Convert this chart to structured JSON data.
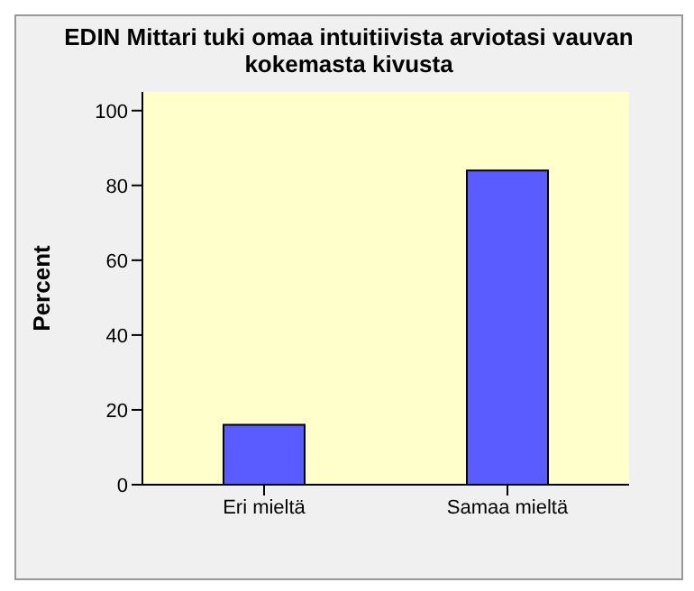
{
  "chart_data": {
    "type": "bar",
    "title": "EDIN Mittari tuki omaa intuitiivista arviotasi vauvan kokemasta kivusta",
    "ylabel": "Percent",
    "categories": [
      "Eri mieltä",
      "Samaa mieltä"
    ],
    "values": [
      16,
      84
    ],
    "color": "#5a5cff",
    "ylim": [
      0,
      105
    ],
    "yticks": [
      0,
      20,
      40,
      60,
      80,
      100
    ],
    "grid": false,
    "legend": false
  }
}
